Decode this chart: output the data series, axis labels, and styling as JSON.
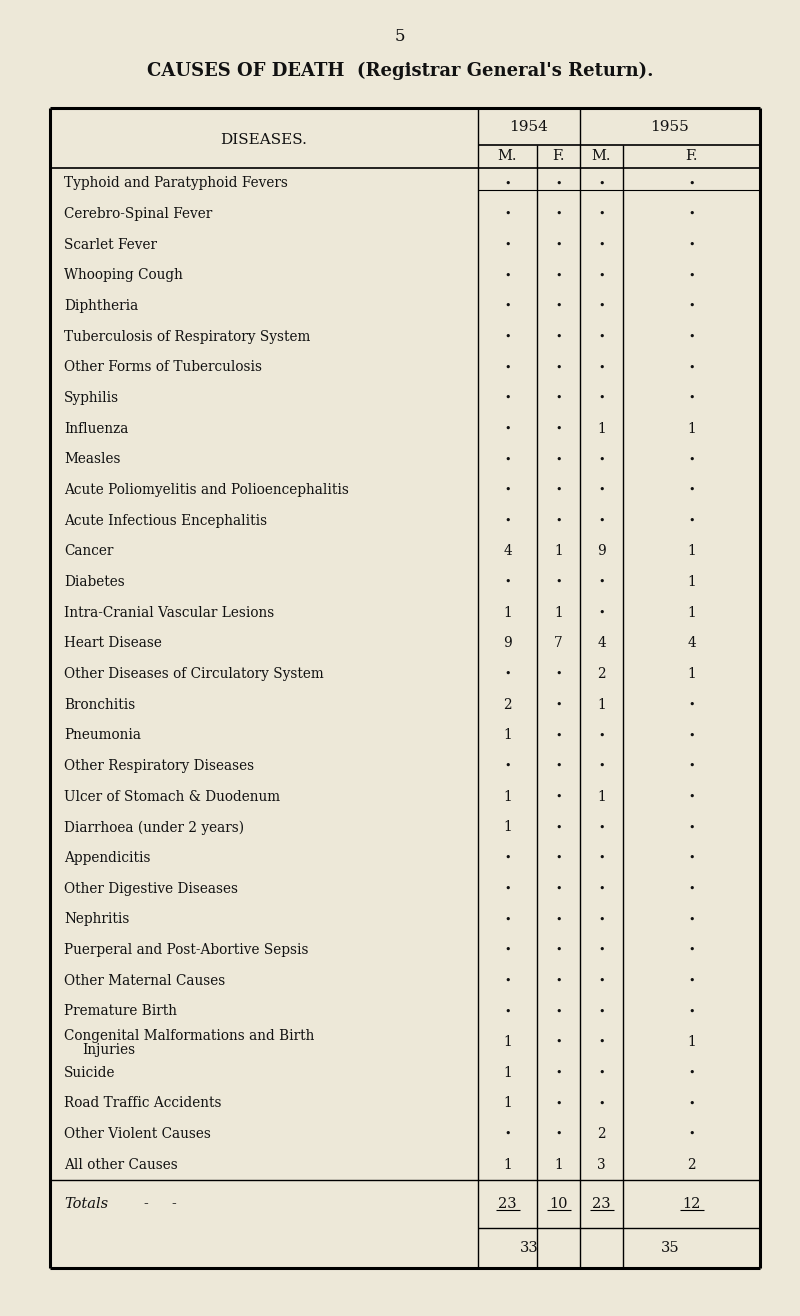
{
  "page_number": "5",
  "main_title": "CAUSES OF DEATH  (Registrar General's Return).",
  "col_header_year1": "1954",
  "col_header_year2": "1955",
  "col_header_m": "M.",
  "col_header_f": "F.",
  "diseases": [
    {
      "name": "Typhoid and Paratyphoid Fevers",
      "m1": "",
      "f1": "",
      "m2": "",
      "f2": ""
    },
    {
      "name": "Cerebro-Spinal Fever",
      "m1": "",
      "f1": "",
      "m2": "",
      "f2": ""
    },
    {
      "name": "Scarlet Fever",
      "m1": "",
      "f1": "",
      "m2": "",
      "f2": ""
    },
    {
      "name": "Whooping Cough",
      "m1": "",
      "f1": "",
      "m2": "",
      "f2": ""
    },
    {
      "name": "Diphtheria",
      "m1": "",
      "f1": "",
      "m2": "",
      "f2": ""
    },
    {
      "name": "Tuberculosis of Respiratory System",
      "m1": "",
      "f1": "",
      "m2": "",
      "f2": ""
    },
    {
      "name": "Other Forms of Tuberculosis",
      "m1": "",
      "f1": "",
      "m2": "",
      "f2": ""
    },
    {
      "name": "Syphilis",
      "m1": "",
      "f1": "",
      "m2": "",
      "f2": ""
    },
    {
      "name": "Influenza",
      "m1": "",
      "f1": "",
      "m2": "1",
      "f2": "1"
    },
    {
      "name": "Measles",
      "m1": "",
      "f1": "",
      "m2": "",
      "f2": ""
    },
    {
      "name": "Acute Poliomyelitis and Polioencephalitis",
      "m1": "",
      "f1": "",
      "m2": "",
      "f2": ""
    },
    {
      "name": "Acute Infectious Encephalitis",
      "m1": "",
      "f1": "",
      "m2": "",
      "f2": ""
    },
    {
      "name": "Cancer",
      "m1": "4",
      "f1": "1",
      "m2": "9",
      "f2": "1"
    },
    {
      "name": "Diabetes",
      "m1": "",
      "f1": "",
      "m2": "",
      "f2": "1"
    },
    {
      "name": "Intra-Cranial Vascular Lesions",
      "m1": "1",
      "f1": "1",
      "m2": "",
      "f2": "1"
    },
    {
      "name": "Heart Disease",
      "m1": "9",
      "f1": "7",
      "m2": "4",
      "f2": "4"
    },
    {
      "name": "Other Diseases of Circulatory System",
      "m1": "",
      "f1": "",
      "m2": "2",
      "f2": "1"
    },
    {
      "name": "Bronchitis",
      "m1": "2",
      "f1": "",
      "m2": "1",
      "f2": ""
    },
    {
      "name": "Pneumonia",
      "m1": "1",
      "f1": "",
      "m2": "",
      "f2": ""
    },
    {
      "name": "Other Respiratory Diseases",
      "m1": "",
      "f1": "",
      "m2": "",
      "f2": ""
    },
    {
      "name": "Ulcer of Stomach & Duodenum",
      "m1": "1",
      "f1": "",
      "m2": "1",
      "f2": ""
    },
    {
      "name": "Diarrhoea (under 2 years)",
      "m1": "1",
      "f1": "",
      "m2": "",
      "f2": ""
    },
    {
      "name": "Appendicitis",
      "m1": "",
      "f1": "",
      "m2": "",
      "f2": ""
    },
    {
      "name": "Other Digestive Diseases",
      "m1": "",
      "f1": "",
      "m2": "",
      "f2": ""
    },
    {
      "name": "Nephritis",
      "m1": "",
      "f1": "",
      "m2": "",
      "f2": ""
    },
    {
      "name": "Puerperal and Post-Abortive Sepsis",
      "m1": "",
      "f1": "",
      "m2": "",
      "f2": ""
    },
    {
      "name": "Other Maternal Causes",
      "m1": "",
      "f1": "",
      "m2": "",
      "f2": ""
    },
    {
      "name": "Premature Birth",
      "m1": "",
      "f1": "",
      "m2": "",
      "f2": ""
    },
    {
      "name": "Congenital Malformations and Birth",
      "m1": "1",
      "f1": "",
      "m2": "",
      "f2": "1",
      "name2": "    Injuries"
    },
    {
      "name": "Suicide",
      "m1": "1",
      "f1": "",
      "m2": "",
      "f2": ""
    },
    {
      "name": "Road Traffic Accidents",
      "m1": "1",
      "f1": "",
      "m2": "",
      "f2": ""
    },
    {
      "name": "Other Violent Causes",
      "m1": "",
      "f1": "",
      "m2": "2",
      "f2": ""
    },
    {
      "name": "All other Causes",
      "m1": "1",
      "f1": "1",
      "m2": "3",
      "f2": "2"
    }
  ],
  "totals_label": "Totals",
  "total_m1": "23",
  "total_f1": "10",
  "total_m2": "23",
  "total_f2": "12",
  "subtotal1": "33",
  "subtotal2": "35",
  "bg_color": "#ede8d8",
  "text_color": "#111111",
  "dot_symbol": "•"
}
